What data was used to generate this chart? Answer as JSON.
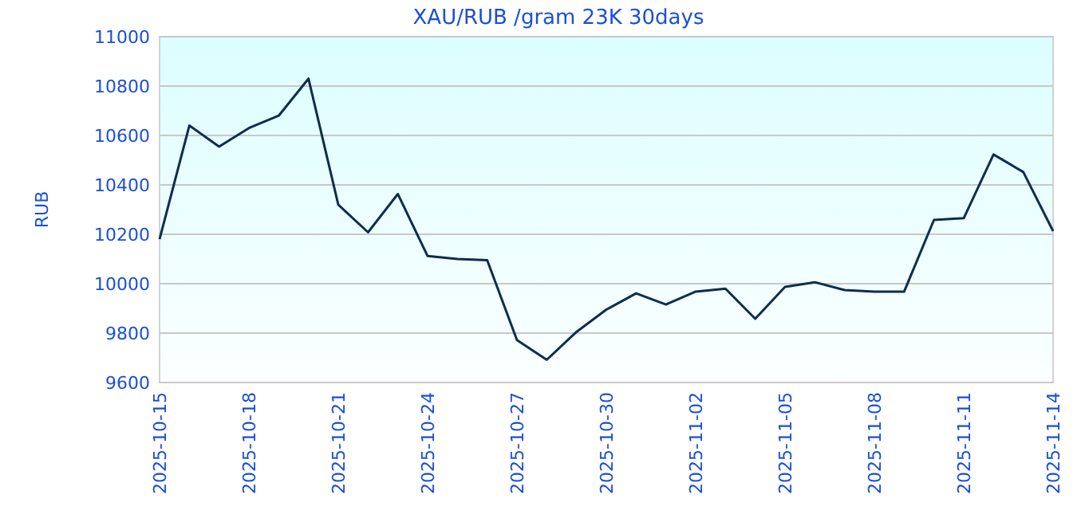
{
  "chart_data": {
    "type": "line",
    "title": "XAU/RUB /gram 23K 30days",
    "ylabel": "RUB",
    "x": [
      "2025-10-15",
      "2025-10-16",
      "2025-10-17",
      "2025-10-18",
      "2025-10-19",
      "2025-10-20",
      "2025-10-21",
      "2025-10-22",
      "2025-10-23",
      "2025-10-24",
      "2025-10-25",
      "2025-10-26",
      "2025-10-27",
      "2025-10-28",
      "2025-10-29",
      "2025-10-30",
      "2025-10-31",
      "2025-11-01",
      "2025-11-02",
      "2025-11-03",
      "2025-11-04",
      "2025-11-05",
      "2025-11-06",
      "2025-11-07",
      "2025-11-08",
      "2025-11-09",
      "2025-11-10",
      "2025-11-11",
      "2025-11-12",
      "2025-11-13",
      "2025-11-14"
    ],
    "series": [
      {
        "color": "#0f2c4f",
        "values": [
          10180,
          10640,
          10555,
          10630,
          10680,
          10830,
          10320,
          10208,
          10363,
          10112,
          10100,
          10095,
          9772,
          9692,
          9805,
          9895,
          9961,
          9916,
          9968,
          9980,
          9858,
          9987,
          10006,
          9974,
          9968,
          9968,
          10258,
          10265,
          10523,
          10452,
          10213
        ]
      }
    ],
    "xlim": [
      "2025-10-15",
      "2025-11-14"
    ],
    "xticks": [
      "2025-10-15",
      "2025-10-18",
      "2025-10-21",
      "2025-10-24",
      "2025-10-27",
      "2025-10-30",
      "2025-11-02",
      "2025-11-05",
      "2025-11-08",
      "2025-11-11",
      "2025-11-14"
    ],
    "ylim": [
      9600,
      11000
    ],
    "yticks": [
      9600,
      9800,
      10000,
      10200,
      10400,
      10600,
      10800,
      11000
    ],
    "grid": "y",
    "marker": "none",
    "line_style": "solid"
  }
}
